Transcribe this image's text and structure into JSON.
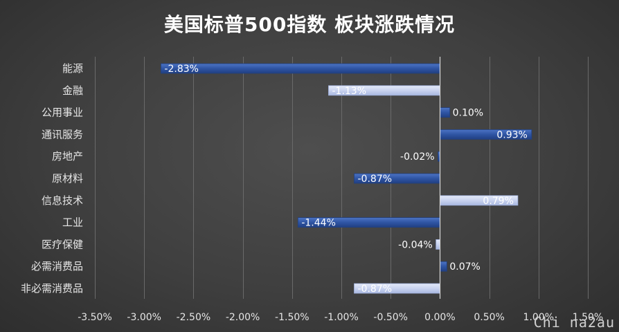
{
  "chart_data": {
    "type": "bar",
    "orientation": "horizontal",
    "title": "美国标普500指数 板块涨跌情况",
    "categories": [
      "能源",
      "金融",
      "公用事业",
      "通讯服务",
      "房地产",
      "原材料",
      "信息技术",
      "工业",
      "医疗保健",
      "必需消费品",
      "非必需消费品"
    ],
    "values": [
      -2.83,
      -1.13,
      0.1,
      0.93,
      -0.02,
      -0.87,
      0.79,
      -1.44,
      -0.04,
      0.07,
      -0.87
    ],
    "data_labels": [
      "-2.83%",
      "-1.13%",
      "0.10%",
      "0.93%",
      "-0.02%",
      "-0.87%",
      "0.79%",
      "-1.44%",
      "-0.04%",
      "0.07%",
      "-0.87%"
    ],
    "bar_styles": [
      "dark",
      "light",
      "dark",
      "dark",
      "dark",
      "dark",
      "light",
      "dark",
      "light",
      "dark",
      "light"
    ],
    "colors": {
      "dark": "#2f55a4",
      "light": "#c9d3ef",
      "dark_edge": "#22407e",
      "light_edge": "#9fb0dc"
    },
    "xlim": [
      -3.5,
      1.5
    ],
    "x_ticks": [
      -3.5,
      -3.0,
      -2.5,
      -2.0,
      -1.5,
      -1.0,
      -0.5,
      0.0,
      0.5,
      1.0,
      1.5
    ],
    "x_tick_labels": [
      "-3.50%",
      "-3.00%",
      "-2.50%",
      "-2.00%",
      "-1.50%",
      "-1.00%",
      "-0.50%",
      "0.00%",
      "0.50%",
      "1.00%",
      "1.50%"
    ],
    "xlabel": "",
    "ylabel": "",
    "grid": true
  },
  "watermark": "Chi na2au"
}
